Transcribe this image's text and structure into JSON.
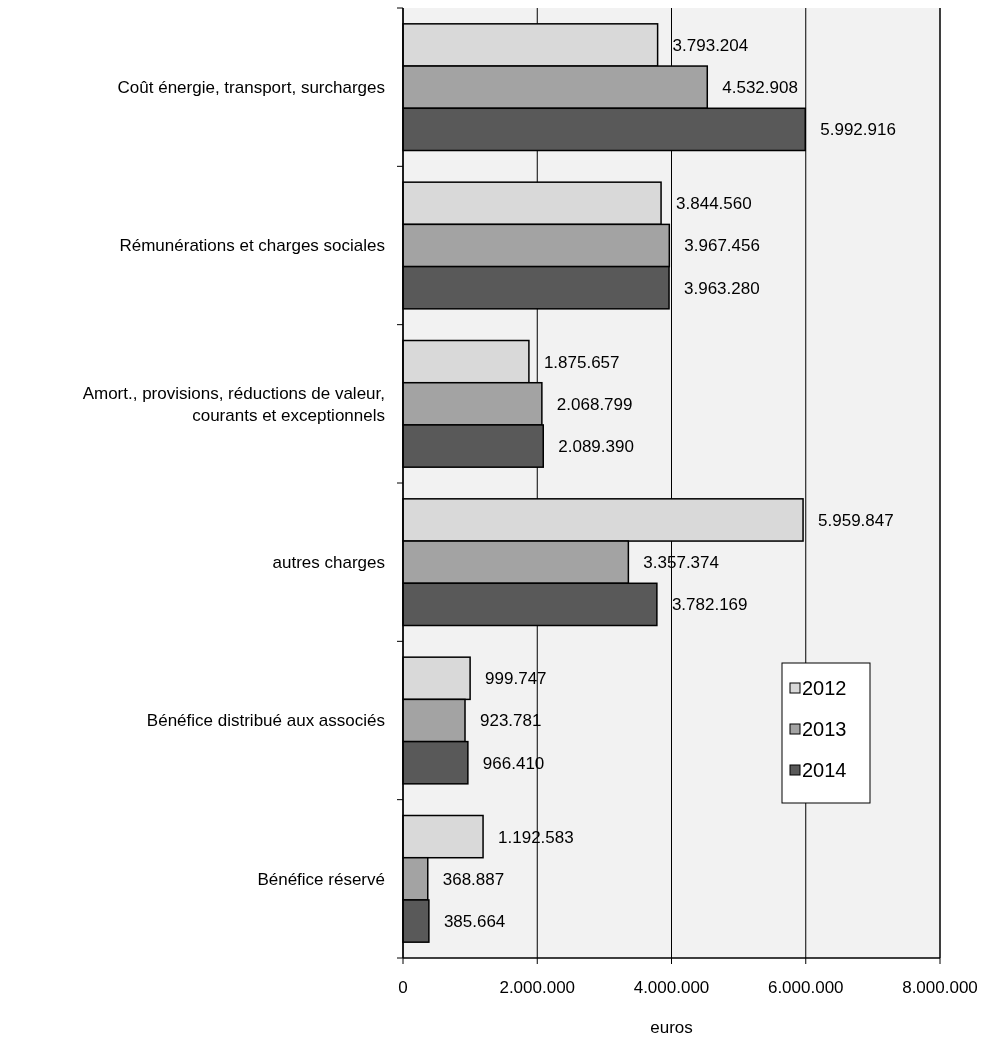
{
  "chart_data": {
    "type": "bar",
    "orientation": "horizontal",
    "xlabel": "euros",
    "categories": [
      "Coût énergie, transport, surcharges",
      "Rémunérations et charges sociales",
      "Amort., provisions, réductions de valeur,\ncourants et exceptionnels",
      "autres charges",
      "Bénéfice distribué aux associés",
      "Bénéfice réservé"
    ],
    "series": [
      {
        "name": "2012",
        "color": "#d9d9d9",
        "values": [
          3793204,
          3844560,
          1875657,
          5959847,
          999747,
          1192583
        ],
        "value_labels": [
          "3.793.204",
          "3.844.560",
          "1.875.657",
          "5.959.847",
          "999.747",
          "1.192.583"
        ]
      },
      {
        "name": "2013",
        "color": "#a3a3a3",
        "values": [
          4532908,
          3967456,
          2068799,
          3357374,
          923781,
          368887
        ],
        "value_labels": [
          "4.532.908",
          "3.967.456",
          "2.068.799",
          "3.357.374",
          "923.781",
          "368.887"
        ]
      },
      {
        "name": "2014",
        "color": "#595959",
        "values": [
          5992916,
          3963280,
          2089390,
          3782169,
          966410,
          385664
        ],
        "value_labels": [
          "5.992.916",
          "3.963.280",
          "2.089.390",
          "3.782.169",
          "966.410",
          "385.664"
        ]
      }
    ],
    "xlim": [
      0,
      8000000
    ],
    "xticks": [
      0,
      {
        "value": 2000000,
        "label": "2.000.000"
      },
      {
        "value": 4000000,
        "label": "4.000.000"
      },
      {
        "value": 6000000,
        "label": "6.000.000"
      },
      {
        "value": 8000000,
        "label": "8.000.000"
      }
    ],
    "grid": "x",
    "legend": "right"
  }
}
